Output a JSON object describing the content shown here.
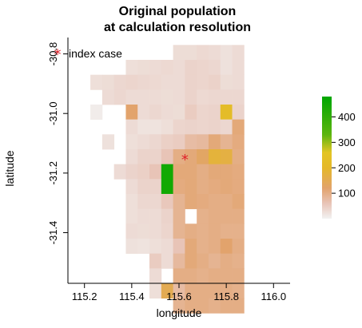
{
  "chart_data": {
    "type": "heatmap",
    "title_line1": "Original population",
    "title_line2": "at calculation resolution",
    "xlabel": "longitude",
    "ylabel": "latitude",
    "xlim": [
      115.13,
      116.07
    ],
    "ylim": [
      -31.57,
      -30.745
    ],
    "x_ticks": [
      115.2,
      115.4,
      115.6,
      115.8,
      116.0
    ],
    "x_tick_labels": [
      "115.2",
      "115.4",
      "115.6",
      "115.8",
      "116.0"
    ],
    "y_ticks": [
      -30.8,
      -31.0,
      -31.2,
      -31.4
    ],
    "y_tick_labels": [
      "-30.8",
      "-31.0",
      "-31.2",
      "-31.4"
    ],
    "cell_size_deg": 0.05,
    "grid_x0": 115.225,
    "grid_y_top": -30.77,
    "grid": [
      [
        null,
        null,
        null,
        null,
        null,
        null,
        null,
        28,
        28,
        33,
        30,
        22,
        30
      ],
      [
        null,
        null,
        null,
        25,
        28,
        30,
        33,
        30,
        40,
        38,
        35,
        22,
        30
      ],
      [
        25,
        28,
        35,
        38,
        35,
        33,
        30,
        30,
        40,
        38,
        42,
        28,
        30
      ],
      [
        null,
        30,
        35,
        30,
        30,
        30,
        28,
        30,
        40,
        33,
        35,
        35,
        35
      ],
      [
        8,
        null,
        null,
        120,
        30,
        35,
        30,
        28,
        50,
        38,
        40,
        220,
        40
      ],
      [
        null,
        null,
        null,
        30,
        20,
        20,
        25,
        38,
        40,
        38,
        40,
        35,
        110
      ],
      [
        null,
        22,
        null,
        25,
        30,
        35,
        45,
        50,
        75,
        80,
        110,
        90,
        105
      ],
      [
        null,
        null,
        null,
        30,
        40,
        40,
        60,
        100,
        110,
        130,
        180,
        170,
        100
      ],
      [
        null,
        null,
        30,
        40,
        45,
        60,
        450,
        110,
        110,
        100,
        110,
        110,
        105
      ],
      [
        null,
        null,
        null,
        30,
        40,
        40,
        450,
        105,
        110,
        100,
        105,
        110,
        105
      ],
      [
        null,
        null,
        null,
        25,
        35,
        35,
        55,
        90,
        110,
        105,
        100,
        100,
        110
      ],
      [
        null,
        null,
        null,
        25,
        30,
        30,
        40,
        90,
        null,
        95,
        100,
        100,
        100
      ],
      [
        null,
        null,
        null,
        30,
        28,
        30,
        38,
        90,
        100,
        95,
        100,
        95,
        95
      ],
      [
        null,
        null,
        null,
        22,
        20,
        25,
        30,
        60,
        110,
        95,
        100,
        120,
        100
      ],
      [
        null,
        null,
        null,
        null,
        null,
        50,
        30,
        80,
        110,
        100,
        90,
        100,
        95
      ],
      [
        null,
        null,
        null,
        null,
        null,
        30,
        null,
        100,
        100,
        95,
        100,
        100,
        100
      ],
      [
        null,
        null,
        null,
        null,
        null,
        25,
        150,
        75,
        100,
        100,
        100,
        100,
        95
      ],
      [
        null,
        null,
        null,
        null,
        null,
        null,
        null,
        90,
        100,
        100,
        95,
        100,
        100
      ]
    ],
    "point": {
      "x": 115.625,
      "y": -31.155,
      "label": "index case",
      "marker": "*",
      "color": "#e0202a"
    },
    "colorbar": {
      "ticks": [
        100,
        200,
        300,
        400
      ],
      "tick_labels": [
        "100",
        "200",
        "300",
        "400"
      ],
      "range": [
        0,
        480
      ],
      "stops": [
        {
          "v": 0,
          "color": "#f2f2f2"
        },
        {
          "v": 60,
          "color": "#e8c4b7"
        },
        {
          "v": 120,
          "color": "#e2a36c"
        },
        {
          "v": 200,
          "color": "#e5b82a"
        },
        {
          "v": 260,
          "color": "#e3c524"
        },
        {
          "v": 330,
          "color": "#5cb50f"
        },
        {
          "v": 480,
          "color": "#00a600"
        }
      ]
    }
  }
}
